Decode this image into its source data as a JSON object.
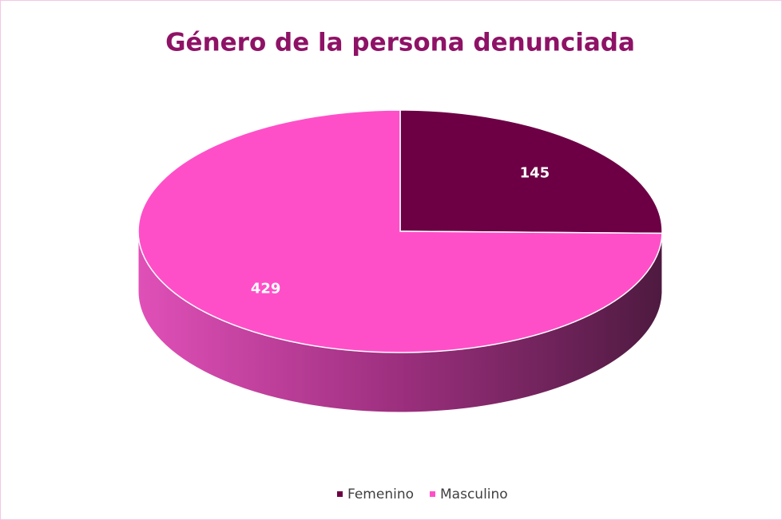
{
  "chart_data": {
    "type": "pie",
    "title": "Género de la persona denunciada",
    "categories": [
      "Femenino",
      "Masculino"
    ],
    "values": [
      145,
      429
    ],
    "colors": [
      "#6d0045",
      "#ff4fc8"
    ],
    "legend": "bottom"
  }
}
